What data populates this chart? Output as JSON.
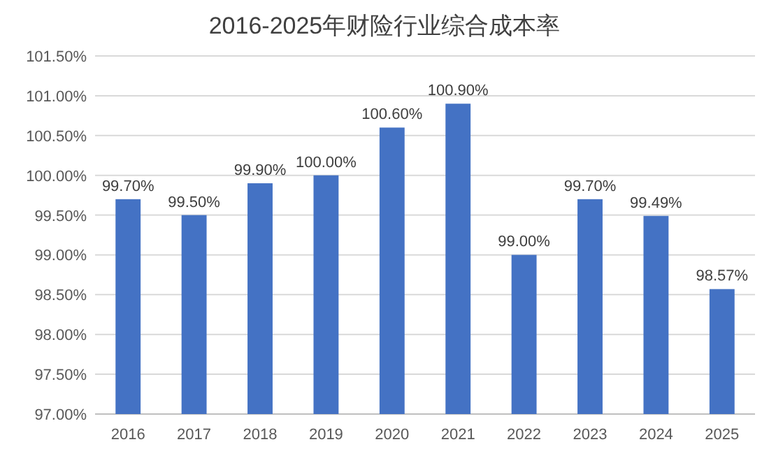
{
  "chart_data": {
    "type": "bar",
    "title": "2016-2025年财险行业综合成本率",
    "categories": [
      "2016",
      "2017",
      "2018",
      "2019",
      "2020",
      "2021",
      "2022",
      "2023",
      "2024",
      "2025"
    ],
    "values": [
      99.7,
      99.5,
      99.9,
      100.0,
      100.6,
      100.9,
      99.0,
      99.7,
      99.49,
      98.57
    ],
    "value_labels": [
      "99.70%",
      "99.50%",
      "99.90%",
      "100.00%",
      "100.60%",
      "100.90%",
      "99.00%",
      "99.70%",
      "99.49%",
      "98.57%"
    ],
    "color": "#4472c4",
    "ylim": [
      97,
      101.5
    ],
    "yticks": [
      {
        "value": 97,
        "label": "97.00%"
      },
      {
        "value": 97.5,
        "label": "97.50%"
      },
      {
        "value": 98,
        "label": "98.00%"
      },
      {
        "value": 98.5,
        "label": "98.50%"
      },
      {
        "value": 99,
        "label": "99.00%"
      },
      {
        "value": 99.5,
        "label": "99.50%"
      },
      {
        "value": 100,
        "label": "100.00%"
      },
      {
        "value": 100.5,
        "label": "100.50%"
      },
      {
        "value": 101,
        "label": "101.00%"
      },
      {
        "value": 101.5,
        "label": "101.50%"
      }
    ],
    "grid": "y"
  }
}
